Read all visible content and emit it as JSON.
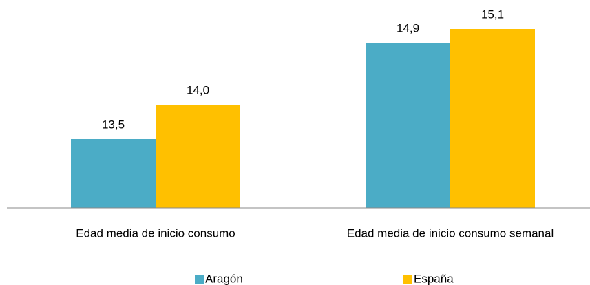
{
  "chart_data": {
    "type": "bar",
    "categories": [
      "Edad media de inicio consumo",
      "Edad media de inicio consumo semanal"
    ],
    "series": [
      {
        "name": "Aragón",
        "color": "#4BACC6",
        "values": [
          13.5,
          14.9
        ],
        "value_labels": [
          "13,5",
          "14,9"
        ]
      },
      {
        "name": "España",
        "color": "#FFC000",
        "values": [
          14.0,
          15.1
        ],
        "value_labels": [
          "14,0",
          "15,1"
        ]
      }
    ],
    "ylim": [
      12.5,
      15.5
    ],
    "legend": "bottom"
  }
}
